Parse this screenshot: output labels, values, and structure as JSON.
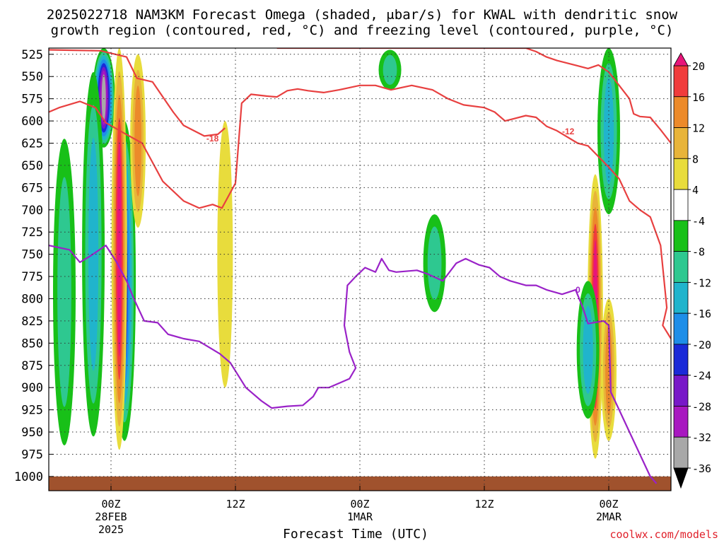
{
  "title": {
    "line1": "2025022718 NAM3KM Forecast Omega (shaded, μbar/s) for KWAL with dendritic snow",
    "line2": "growth region (contoured, red, °C) and freezing level (contoured, purple, °C)"
  },
  "credit": "coolwx.com/models",
  "chart_data": {
    "type": "heatmap",
    "xlabel": "Forecast Time (UTC)",
    "x_ticks": [
      {
        "hour": 30,
        "label": "00Z",
        "sub1": "28FEB",
        "sub2": "2025"
      },
      {
        "hour": 42,
        "label": "12Z",
        "sub1": "",
        "sub2": ""
      },
      {
        "hour": 54,
        "label": "00Z",
        "sub1": "1MAR",
        "sub2": ""
      },
      {
        "hour": 66,
        "label": "12Z",
        "sub1": "",
        "sub2": ""
      },
      {
        "hour": 78,
        "label": "00Z",
        "sub1": "2MAR",
        "sub2": ""
      }
    ],
    "xlim_hours": [
      24,
      84
    ],
    "y_ticks": [
      525,
      550,
      575,
      600,
      625,
      650,
      675,
      700,
      725,
      750,
      775,
      800,
      825,
      850,
      875,
      900,
      925,
      950,
      975,
      1000
    ],
    "ylim_hPa": [
      518,
      1016
    ],
    "colorbar": {
      "ticks": [
        20,
        16,
        12,
        8,
        4,
        -4,
        -8,
        -12,
        -16,
        -20,
        -24,
        -28,
        -32,
        -36
      ],
      "colors": [
        "#e8157a",
        "#f03c3c",
        "#ec8a2a",
        "#e8b43a",
        "#e8dc3c",
        "#ffffff",
        "#18c018",
        "#2ec890",
        "#20b4cc",
        "#1e8ee8",
        "#1a2ad8",
        "#7818c8",
        "#a818c0",
        "#a8a8a8",
        "#000000"
      ]
    },
    "omega_features": [
      {
        "kind": "rising",
        "hour": 29.3,
        "p_top": 518,
        "p_bot": 630,
        "peak": -32
      },
      {
        "kind": "rising",
        "hour": 25.5,
        "p_top": 620,
        "p_bot": 965,
        "peak": -8
      },
      {
        "kind": "rising",
        "hour": 28.3,
        "p_top": 545,
        "p_bot": 955,
        "peak": -12
      },
      {
        "kind": "rising",
        "hour": 31.3,
        "p_top": 600,
        "p_bot": 960,
        "peak": -20
      },
      {
        "kind": "sinking",
        "hour": 30.8,
        "p_top": 518,
        "p_bot": 970,
        "peak": 20
      },
      {
        "kind": "sinking",
        "hour": 32.6,
        "p_top": 525,
        "p_bot": 720,
        "peak": 12
      },
      {
        "kind": "sinking",
        "hour": 41.0,
        "p_top": 600,
        "p_bot": 900,
        "peak": 4
      },
      {
        "kind": "rising",
        "hour": 56.9,
        "p_top": 520,
        "p_bot": 565,
        "peak": -8
      },
      {
        "kind": "rising",
        "hour": 61.2,
        "p_top": 705,
        "p_bot": 815,
        "peak": -8
      },
      {
        "kind": "sinking",
        "hour": 76.7,
        "p_top": 660,
        "p_bot": 980,
        "peak": 20
      },
      {
        "kind": "rising",
        "hour": 76.0,
        "p_top": 780,
        "p_bot": 935,
        "peak": -12
      },
      {
        "kind": "rising",
        "hour": 78.0,
        "p_top": 518,
        "p_bot": 705,
        "peak": -12
      },
      {
        "kind": "sinking",
        "hour": 78.0,
        "p_top": 800,
        "p_bot": 960,
        "peak": 12
      }
    ],
    "dgz_contours": {
      "color": "#e84040",
      "labels": [
        {
          "text": "-18",
          "hour": 39.2,
          "p": 620
        },
        {
          "text": "-12",
          "hour": 73.5,
          "p": 612
        }
      ],
      "lines": [
        [
          [
            24,
            520
          ],
          [
            29,
            521
          ],
          [
            31.5,
            528
          ],
          [
            32.5,
            552
          ],
          [
            34,
            556
          ],
          [
            36,
            590
          ],
          [
            37,
            605
          ],
          [
            39,
            617
          ],
          [
            40.3,
            615
          ],
          [
            41,
            608
          ]
        ],
        [
          [
            24,
            590
          ],
          [
            25,
            585
          ],
          [
            27,
            578
          ],
          [
            28.5,
            585
          ],
          [
            29.5,
            602
          ],
          [
            31,
            612
          ],
          [
            33,
            625
          ],
          [
            35,
            668
          ],
          [
            37,
            690
          ],
          [
            38.5,
            698
          ],
          [
            39.8,
            694
          ],
          [
            40.7,
            698
          ],
          [
            42,
            670
          ],
          [
            42.6,
            580
          ],
          [
            43.5,
            570
          ],
          [
            45,
            572
          ],
          [
            46,
            573
          ],
          [
            47,
            566
          ],
          [
            48,
            564
          ],
          [
            49,
            566
          ],
          [
            50.5,
            568
          ],
          [
            52,
            565
          ],
          [
            54,
            560
          ],
          [
            55.5,
            560
          ],
          [
            57,
            565
          ],
          [
            59,
            560
          ],
          [
            61,
            565
          ],
          [
            62.5,
            575
          ],
          [
            64,
            582
          ],
          [
            66,
            585
          ],
          [
            67,
            590
          ],
          [
            68,
            600
          ],
          [
            69,
            597
          ],
          [
            70,
            594
          ],
          [
            71,
            596
          ],
          [
            72,
            606
          ],
          [
            73,
            611
          ],
          [
            75,
            625
          ],
          [
            76,
            628
          ],
          [
            77,
            640
          ],
          [
            78,
            652
          ],
          [
            79,
            665
          ],
          [
            80,
            690
          ],
          [
            81,
            700
          ],
          [
            82,
            708
          ],
          [
            83,
            740
          ],
          [
            83.6,
            810
          ],
          [
            83.2,
            830
          ],
          [
            84,
            845
          ]
        ],
        [
          [
            46,
            518
          ],
          [
            48,
            518
          ],
          [
            55,
            518
          ],
          [
            70,
            518
          ],
          [
            71,
            522
          ],
          [
            72,
            528
          ],
          [
            73,
            532
          ],
          [
            75,
            538
          ],
          [
            76,
            541
          ],
          [
            77,
            537
          ],
          [
            78,
            545
          ],
          [
            79,
            560
          ],
          [
            80,
            575
          ],
          [
            80.4,
            592
          ],
          [
            81,
            595
          ],
          [
            82,
            596
          ],
          [
            83,
            610
          ],
          [
            84,
            625
          ]
        ]
      ]
    },
    "freezing_level": {
      "color": "#9a22c8",
      "label": {
        "text": "0",
        "hour": 74.8,
        "p": 790
      },
      "lines": [
        [
          [
            24,
            740
          ],
          [
            26,
            745
          ],
          [
            27,
            759
          ],
          [
            28,
            752
          ],
          [
            29.5,
            740
          ],
          [
            30.5,
            758
          ],
          [
            31.5,
            780
          ],
          [
            32.2,
            800
          ],
          [
            33.2,
            825
          ],
          [
            34.5,
            827
          ],
          [
            35.5,
            840
          ],
          [
            37,
            845
          ],
          [
            38.5,
            848
          ],
          [
            39.5,
            855
          ],
          [
            40.5,
            862
          ],
          [
            41.5,
            872
          ],
          [
            42.2,
            885
          ],
          [
            43,
            900
          ],
          [
            44.5,
            915
          ],
          [
            45.5,
            923
          ],
          [
            47,
            921
          ],
          [
            48.5,
            920
          ],
          [
            49.5,
            910
          ],
          [
            50,
            900
          ],
          [
            51,
            900
          ],
          [
            53,
            890
          ],
          [
            53.6,
            878
          ],
          [
            53,
            860
          ],
          [
            52.5,
            830
          ],
          [
            52.8,
            785
          ],
          [
            53.6,
            775
          ],
          [
            54.5,
            765
          ],
          [
            55.5,
            770
          ],
          [
            56.1,
            755
          ],
          [
            56.8,
            768
          ],
          [
            57.5,
            770
          ],
          [
            59.5,
            768
          ],
          [
            60.5,
            772
          ],
          [
            62,
            780
          ],
          [
            63.3,
            760
          ],
          [
            64.2,
            755
          ],
          [
            65.5,
            762
          ],
          [
            66.5,
            765
          ],
          [
            67.5,
            775
          ],
          [
            68.5,
            780
          ],
          [
            70,
            785
          ],
          [
            71,
            785
          ],
          [
            72,
            790
          ],
          [
            73.5,
            795
          ],
          [
            74.8,
            790
          ],
          [
            75.5,
            810
          ],
          [
            76,
            828
          ],
          [
            77.5,
            825
          ],
          [
            78,
            830
          ],
          [
            78.2,
            905
          ],
          [
            79,
            925
          ],
          [
            80,
            950
          ],
          [
            81,
            975
          ],
          [
            82,
            1000
          ],
          [
            82.6,
            1008
          ]
        ]
      ]
    },
    "terrain": {
      "color": "#a0522d",
      "p_top": 1000
    }
  }
}
